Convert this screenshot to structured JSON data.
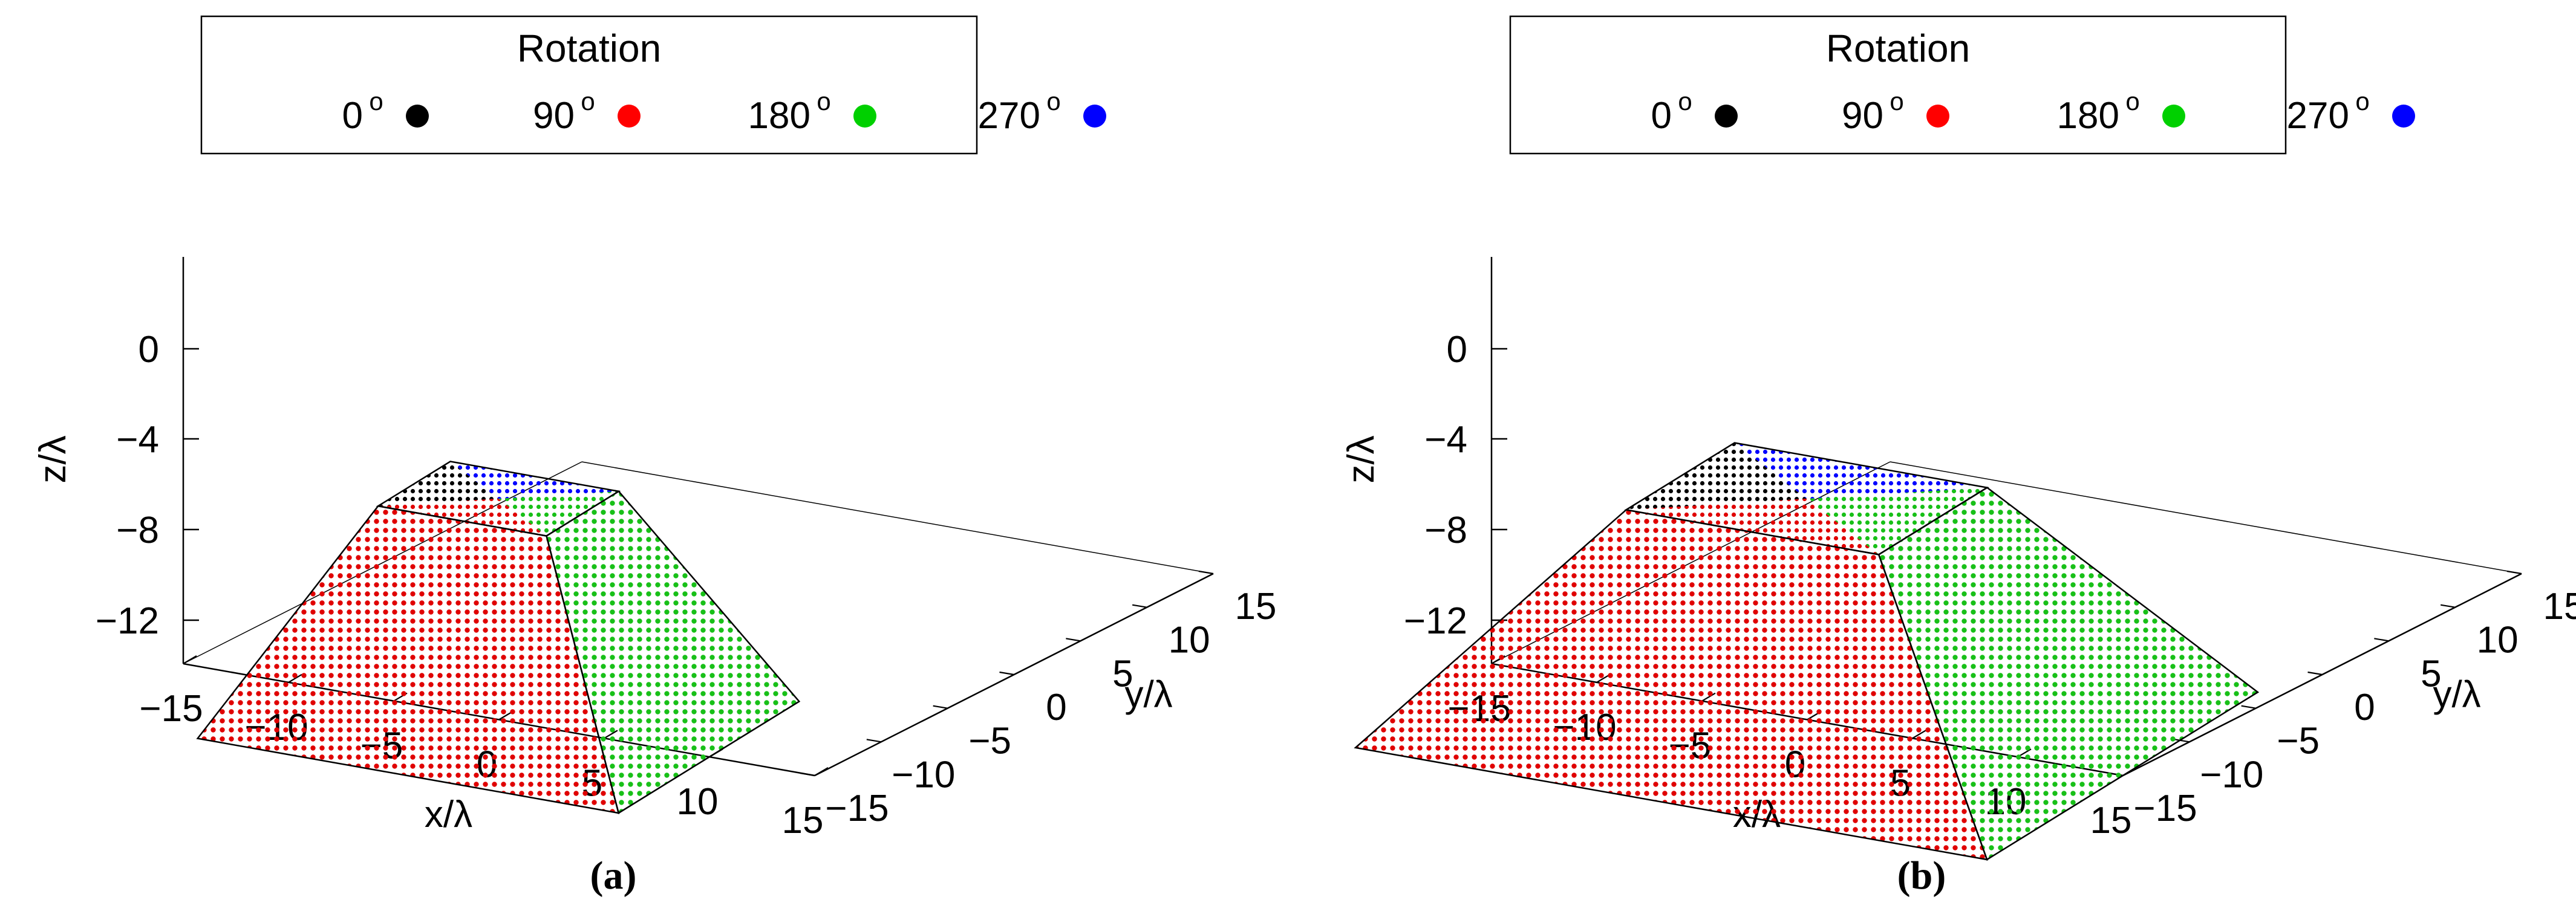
{
  "legend": {
    "title": "Rotation",
    "entries": [
      {
        "label": "0",
        "sup": "o",
        "color": "#000000"
      },
      {
        "label": "90",
        "sup": "o",
        "color": "#ff0000"
      },
      {
        "label": "180",
        "sup": "o",
        "color": "#00d000"
      },
      {
        "label": "270",
        "sup": "o",
        "color": "#0000ff"
      }
    ]
  },
  "chart_data": [
    {
      "type": "scatter",
      "caption": "(a)",
      "xlabel": "x/λ",
      "ylabel": "y/λ",
      "zlabel": "z/λ",
      "xticks": [
        "−15",
        "−10",
        "−5",
        "0",
        "5",
        "10",
        "15"
      ],
      "yticks": [
        "−15",
        "−10",
        "−5",
        "0",
        "5",
        "10",
        "15"
      ],
      "zticks": [
        "0",
        "−4",
        "−8",
        "−12"
      ],
      "xlim": [
        -15,
        15
      ],
      "ylim": [
        -15,
        15
      ],
      "zlim": [
        -14,
        4
      ],
      "base_halfwidth": 10,
      "top_halfwidth": 4,
      "z_base": -12,
      "z_top": 0,
      "faces": [
        {
          "face": "top",
          "rotation_colors": [
            "#000000",
            "#ff0000",
            "#00d000",
            "#0000ff"
          ]
        },
        {
          "face": "front",
          "color": "#ff0000"
        },
        {
          "face": "right",
          "color": "#00d000"
        }
      ]
    },
    {
      "type": "scatter",
      "caption": "(b)",
      "xlabel": "x/λ",
      "ylabel": "y/λ",
      "zlabel": "z/λ",
      "xticks": [
        "−15",
        "−10",
        "−5",
        "0",
        "5",
        "10",
        "15"
      ],
      "yticks": [
        "−15",
        "−10",
        "−5",
        "0",
        "5",
        "10",
        "15"
      ],
      "zticks": [
        "0",
        "−4",
        "−8",
        "−12"
      ],
      "xlim": [
        -15,
        15
      ],
      "ylim": [
        -15,
        15
      ],
      "zlim": [
        -14,
        4
      ],
      "base_halfwidth": 15,
      "top_halfwidth": 6,
      "z_base": -12,
      "z_top": 0,
      "faces": [
        {
          "face": "top",
          "rotation_colors": [
            "#000000",
            "#ff0000",
            "#00d000",
            "#0000ff"
          ]
        },
        {
          "face": "front",
          "color": "#ff0000"
        },
        {
          "face": "right",
          "color": "#00d000"
        }
      ]
    }
  ]
}
